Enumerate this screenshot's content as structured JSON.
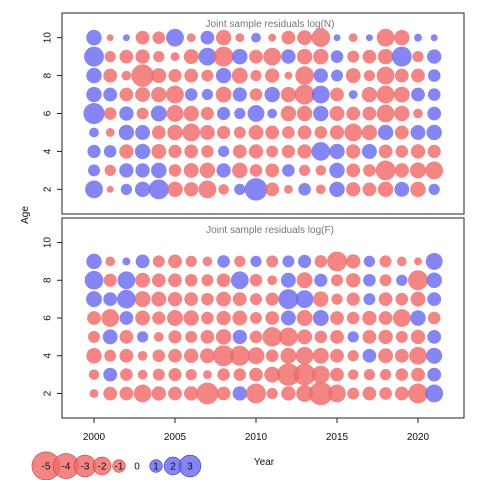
{
  "chart_data": {
    "type": "scatter",
    "subtype": "bubble",
    "xlabel": "Year",
    "ylabel": "Age",
    "x_ticks": [
      "2000",
      "2005",
      "2010",
      "2015",
      "2020"
    ],
    "x_tick_values": [
      2000,
      2005,
      2010,
      2015,
      2020
    ],
    "y_ticks": [
      "2",
      "4",
      "6",
      "8",
      "10"
    ],
    "y_tick_values": [
      2,
      4,
      6,
      8,
      10
    ],
    "xlim": [
      1998,
      2022
    ],
    "ylim": [
      0.7,
      11.3
    ],
    "years": [
      2000,
      2001,
      2002,
      2003,
      2004,
      2005,
      2006,
      2007,
      2008,
      2009,
      2010,
      2011,
      2012,
      2013,
      2014,
      2015,
      2016,
      2017,
      2018,
      2019,
      2020,
      2021
    ],
    "ages": [
      2,
      3,
      4,
      5,
      6,
      7,
      8,
      9,
      10
    ],
    "colors": {
      "positive": "#6a6af0",
      "negative": "#f06a6a"
    },
    "panels": [
      {
        "title": "Joint sample residuals log(N)",
        "residuals_by_age": {
          "10": [
            1.5,
            -0.3,
            0.3,
            -1.2,
            -1.0,
            2.0,
            -0.5,
            1.2,
            -1.5,
            -0.5,
            0.6,
            -0.4,
            -1.2,
            -1.4,
            -2.2,
            0.3,
            -0.5,
            0.3,
            -2.0,
            -1.5,
            0.4,
            0.3
          ],
          "9": [
            2.5,
            -0.8,
            -1.2,
            -1.3,
            -0.8,
            -0.5,
            -1.4,
            2.0,
            -2.5,
            1.5,
            -1.2,
            -2.0,
            1.3,
            -1.5,
            -1.5,
            1.0,
            -0.9,
            -1.2,
            -1.5,
            2.5,
            -0.8,
            1.3
          ],
          "8": [
            1.5,
            -1.2,
            -0.6,
            -3.2,
            -1.4,
            -1.1,
            -1.2,
            -0.9,
            1.5,
            -1.6,
            -0.8,
            -1.3,
            -0.4,
            -2.2,
            1.3,
            0.9,
            -1.4,
            -0.8,
            -2.0,
            -1.2,
            -1.2,
            1.0
          ],
          "7": [
            1.5,
            1.2,
            -1.2,
            -1.4,
            -1.5,
            -2.0,
            1.0,
            0.8,
            -1.6,
            1.3,
            -1.0,
            1.5,
            -1.5,
            -2.5,
            2.0,
            -1.2,
            0.5,
            -1.5,
            -2.0,
            -1.6,
            1.2,
            1.0
          ],
          "6": [
            2.8,
            -1.0,
            1.3,
            -0.9,
            1.6,
            -1.8,
            -1.5,
            -1.1,
            1.1,
            0.8,
            1.8,
            0.6,
            -1.5,
            -1.5,
            1.5,
            -1.4,
            -1.2,
            -1.2,
            -2.0,
            -1.5,
            -0.6,
            1.2
          ],
          "5": [
            0.6,
            -0.5,
            1.5,
            1.4,
            -1.2,
            -1.5,
            -2.0,
            -1.4,
            -1.1,
            -0.9,
            -1.4,
            -1.2,
            -1.0,
            -1.2,
            -1.0,
            -1.3,
            -2.0,
            -1.5,
            1.5,
            -1.2,
            1.4,
            1.5
          ],
          "4": [
            1.1,
            1.0,
            -1.3,
            1.5,
            -1.4,
            -1.1,
            -1.2,
            -1.0,
            0.8,
            -1.2,
            -1.3,
            -0.9,
            -1.1,
            -1.3,
            2.2,
            1.5,
            -1.3,
            1.4,
            -1.2,
            -1.0,
            -1.3,
            -1.1
          ],
          "3": [
            0.9,
            -0.8,
            1.3,
            1.3,
            1.5,
            -1.0,
            -1.4,
            -1.5,
            1.3,
            -1.5,
            -1.0,
            -1.2,
            1.0,
            -0.8,
            -0.7,
            1.5,
            -1.2,
            -1.0,
            -2.5,
            -1.3,
            -1.6,
            -2.0
          ],
          "2": [
            2.0,
            -0.3,
            0.8,
            1.5,
            2.5,
            -1.5,
            -1.3,
            -2.0,
            -0.7,
            0.8,
            3.2,
            -1.2,
            -0.5,
            1.0,
            -0.6,
            1.5,
            -1.3,
            -1.2,
            -1.5,
            1.4,
            -1.5,
            0.8
          ]
        }
      },
      {
        "title": "Joint sample residuals log(F)",
        "residuals_by_age": {
          "9": [
            1.5,
            -0.6,
            0.4,
            1.2,
            -0.9,
            -1.2,
            -0.8,
            -0.6,
            1.0,
            -0.8,
            0.8,
            -0.9,
            0.9,
            1.1,
            -1.0,
            -2.5,
            -1.3,
            0.8,
            -0.9,
            -0.6,
            -0.4,
            1.8
          ],
          "8": [
            2.2,
            -1.1,
            2.0,
            -1.4,
            -1.2,
            -1.2,
            -1.0,
            -0.9,
            -1.2,
            2.0,
            -1.0,
            -0.6,
            1.4,
            -1.6,
            1.1,
            -0.9,
            -1.3,
            1.0,
            -0.9,
            0.8,
            -2.5,
            1.5
          ],
          "7": [
            1.6,
            1.2,
            2.2,
            -1.6,
            -1.4,
            -1.3,
            -1.2,
            -1.0,
            -1.4,
            -1.2,
            -0.9,
            -1.1,
            2.5,
            2.0,
            -1.5,
            -0.8,
            -1.1,
            0.9,
            -1.2,
            -1.0,
            -1.4,
            1.2
          ],
          "6": [
            -1.2,
            -2.0,
            1.2,
            -1.4,
            -1.1,
            -1.6,
            -1.5,
            -1.0,
            -1.3,
            -1.4,
            -0.9,
            -1.2,
            1.4,
            -1.6,
            1.6,
            -1.2,
            -1.0,
            -1.3,
            -1.2,
            -2.0,
            1.5,
            -1.0
          ],
          "5": [
            -0.9,
            1.4,
            -1.2,
            0.8,
            -0.6,
            -1.1,
            -0.9,
            -1.2,
            -1.5,
            1.3,
            -1.0,
            -2.4,
            -2.2,
            -1.4,
            -1.0,
            -1.2,
            0.8,
            -1.2,
            -1.3,
            -0.9,
            -1.3,
            1.2
          ],
          "4": [
            -1.5,
            -0.9,
            -1.2,
            -0.6,
            -1.0,
            -1.2,
            -1.3,
            -1.4,
            -2.8,
            -2.5,
            -1.8,
            -1.0,
            -1.6,
            -2.0,
            -1.6,
            -1.2,
            -0.8,
            1.2,
            -1.4,
            -1.2,
            -2.0,
            1.6
          ],
          "3": [
            -0.7,
            1.2,
            -1.0,
            -0.6,
            -0.9,
            -1.1,
            -0.8,
            -0.5,
            -1.0,
            -1.0,
            -1.2,
            -1.6,
            -3.2,
            -3.0,
            -2.0,
            -1.2,
            -0.7,
            -0.8,
            -0.8,
            -1.0,
            -1.2,
            1.2
          ],
          "2": [
            -0.5,
            -1.2,
            -1.2,
            -2.0,
            -1.3,
            -1.2,
            -1.3,
            -3.0,
            -1.2,
            1.3,
            -2.5,
            -0.8,
            -1.3,
            -1.8,
            -3.5,
            -2.0,
            -0.9,
            -1.2,
            -1.0,
            -1.2,
            -2.5,
            2.0
          ]
        }
      }
    ],
    "legend": {
      "placement": "bottom-left",
      "entries": [
        {
          "label": "-5",
          "value": -5
        },
        {
          "label": "-4",
          "value": -4
        },
        {
          "label": "-3",
          "value": -3
        },
        {
          "label": "-2",
          "value": -2
        },
        {
          "label": "-1",
          "value": -1
        },
        {
          "label": "0",
          "value": 0
        },
        {
          "label": "1",
          "value": 1
        },
        {
          "label": "2",
          "value": 2
        },
        {
          "label": "3",
          "value": 3
        }
      ]
    }
  }
}
